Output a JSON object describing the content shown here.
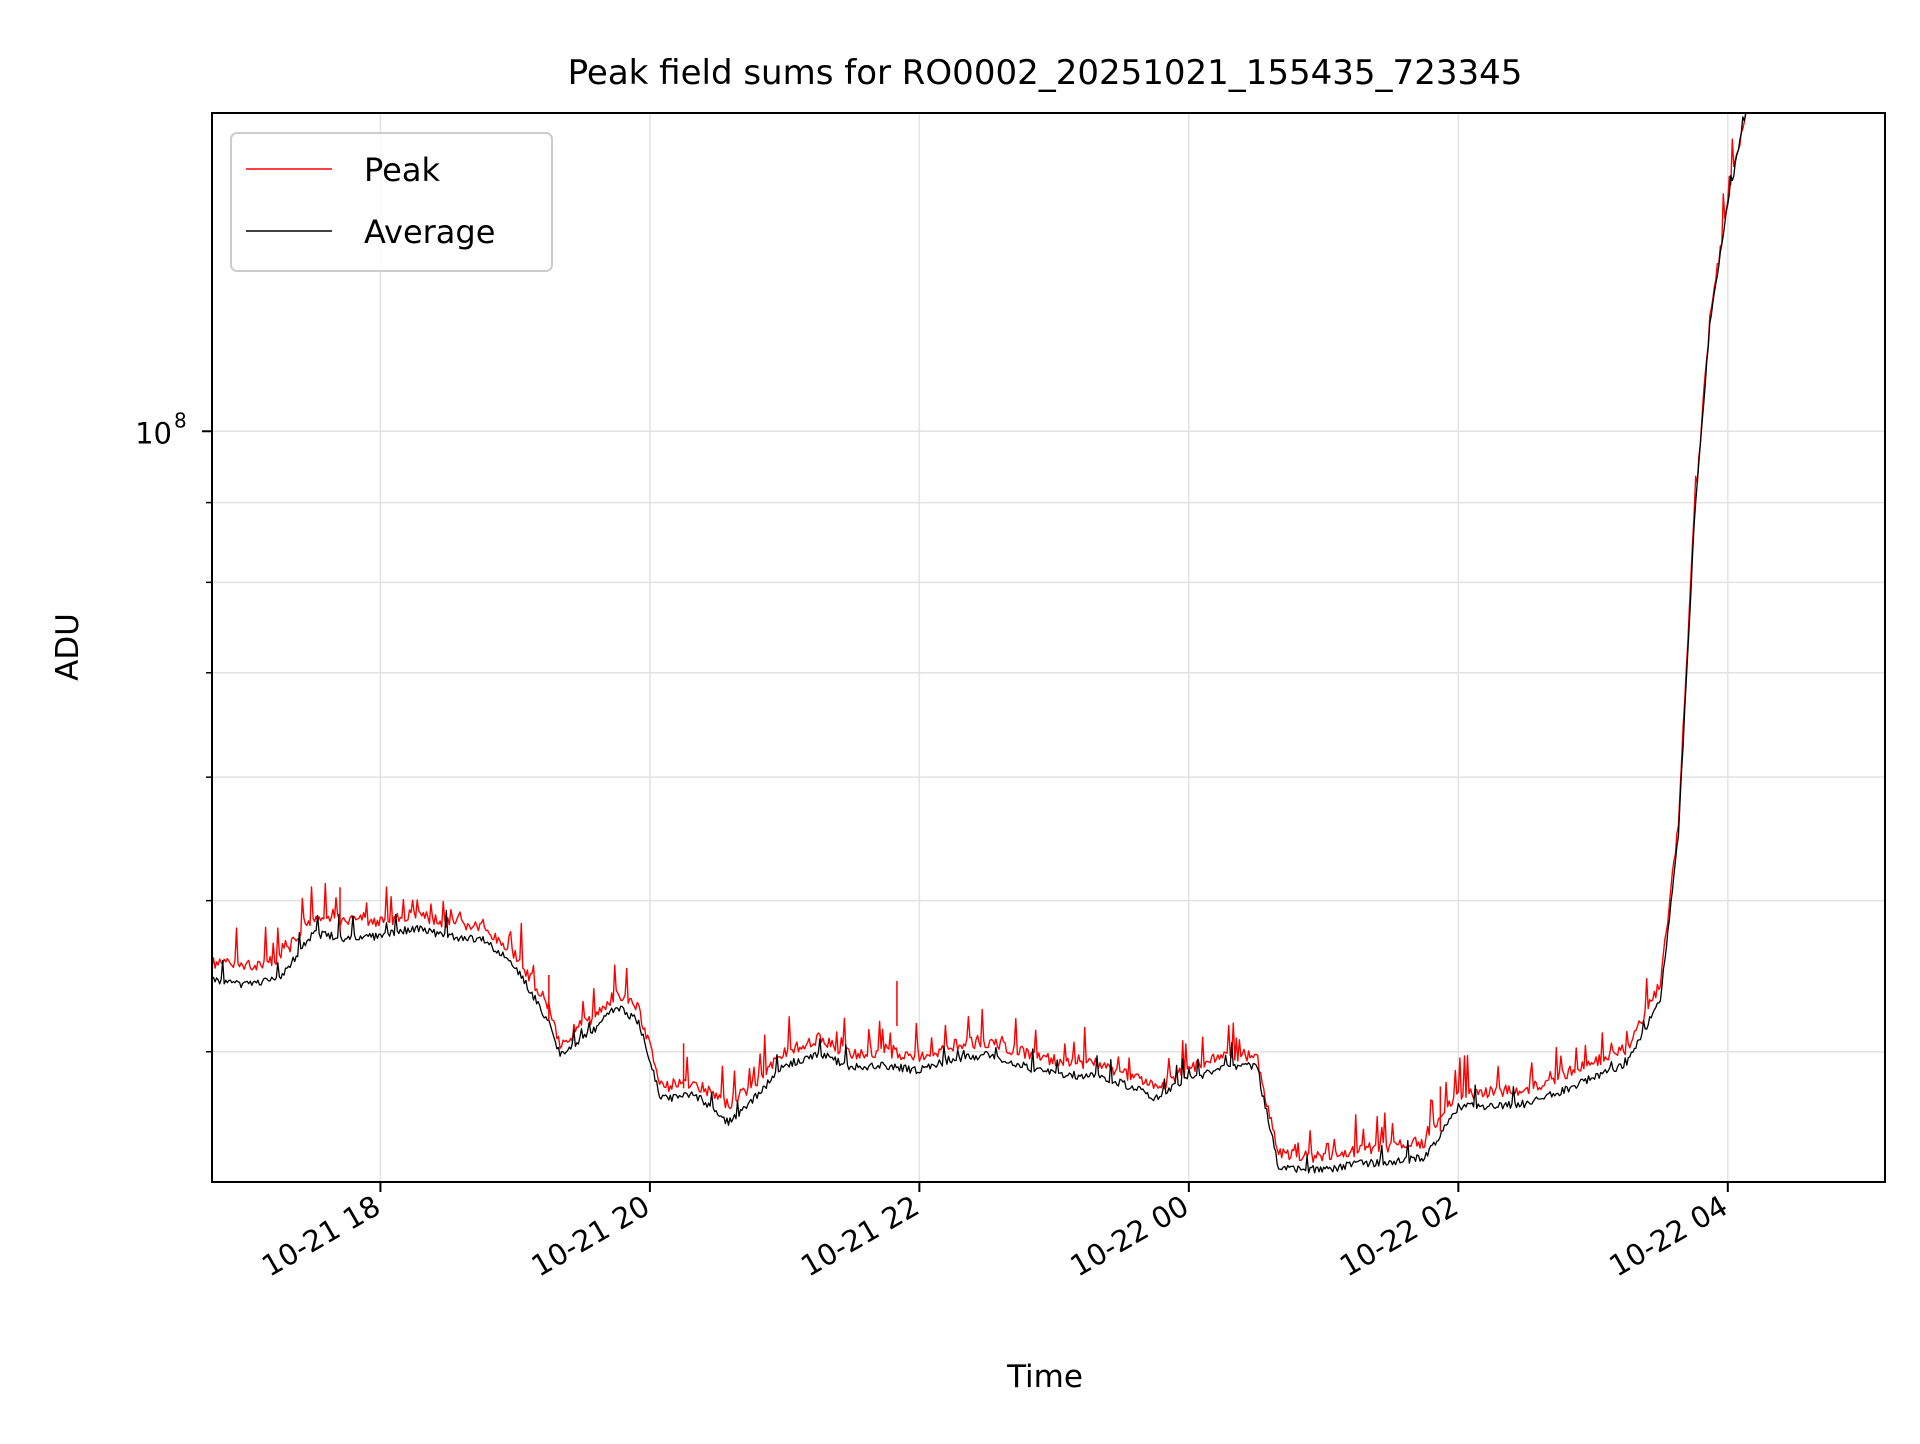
{
  "chart_data": {
    "type": "line",
    "title": "Peak field sums for RO0002_20251021_155435_723345",
    "xlabel": "Time",
    "ylabel": "ADU",
    "x_scale": "time",
    "y_scale": "log",
    "xlim": [
      "2025-10-21 16:45",
      "2025-10-22 05:10"
    ],
    "ylim": [
      33000000,
      160000000
    ],
    "grid": true,
    "legend_position": "top-left",
    "x_ticks": [
      {
        "t": "2025-10-21 18:00",
        "label": "10-21 18"
      },
      {
        "t": "2025-10-21 20:00",
        "label": "10-21 20"
      },
      {
        "t": "2025-10-21 22:00",
        "label": "10-21 22"
      },
      {
        "t": "2025-10-22 00:00",
        "label": "10-22 00"
      },
      {
        "t": "2025-10-22 02:00",
        "label": "10-22 02"
      },
      {
        "t": "2025-10-22 04:00",
        "label": "10-22 04"
      }
    ],
    "y_major_ticks": [
      {
        "value": 100000000,
        "base": "10",
        "exponent": "8"
      }
    ],
    "y_minor_ticks": [
      40000000,
      50000000,
      60000000,
      70000000,
      80000000,
      90000000,
      200000000
    ],
    "series": [
      {
        "name": "Peak",
        "color": "#ff0000",
        "points": [
          [
            "2025-10-21 16:45",
            45600000
          ],
          [
            "2025-10-21 17:00",
            45400000
          ],
          [
            "2025-10-21 17:15",
            45800000
          ],
          [
            "2025-10-21 17:30",
            48800000
          ],
          [
            "2025-10-21 17:45",
            48600000
          ],
          [
            "2025-10-21 18:00",
            48400000
          ],
          [
            "2025-10-21 18:15",
            49000000
          ],
          [
            "2025-10-21 18:30",
            48400000
          ],
          [
            "2025-10-21 18:45",
            48000000
          ],
          [
            "2025-10-21 19:00",
            46200000
          ],
          [
            "2025-10-21 19:15",
            42800000
          ],
          [
            "2025-10-21 19:20",
            40400000
          ],
          [
            "2025-10-21 19:35",
            42000000
          ],
          [
            "2025-10-21 19:45",
            43600000
          ],
          [
            "2025-10-21 19:55",
            42600000
          ],
          [
            "2025-10-21 20:05",
            38000000
          ],
          [
            "2025-10-21 20:20",
            38200000
          ],
          [
            "2025-10-21 20:35",
            37000000
          ],
          [
            "2025-10-21 20:45",
            38000000
          ],
          [
            "2025-10-21 21:00",
            40000000
          ],
          [
            "2025-10-21 21:15",
            40800000
          ],
          [
            "2025-10-21 21:30",
            39800000
          ],
          [
            "2025-10-21 21:45",
            40000000
          ],
          [
            "2025-10-21 22:00",
            39600000
          ],
          [
            "2025-10-21 22:15",
            40400000
          ],
          [
            "2025-10-21 22:30",
            40600000
          ],
          [
            "2025-10-21 22:45",
            40000000
          ],
          [
            "2025-10-21 23:00",
            39500000
          ],
          [
            "2025-10-21 23:15",
            39300000
          ],
          [
            "2025-10-21 23:30",
            38800000
          ],
          [
            "2025-10-21 23:45",
            37900000
          ],
          [
            "2025-10-22 00:00",
            39000000
          ],
          [
            "2025-10-22 00:15",
            39800000
          ],
          [
            "2025-10-22 00:30",
            39800000
          ],
          [
            "2025-10-22 00:40",
            34400000
          ],
          [
            "2025-10-22 01:00",
            34200000
          ],
          [
            "2025-10-22 01:15",
            34600000
          ],
          [
            "2025-10-22 01:30",
            34800000
          ],
          [
            "2025-10-22 01:45",
            35000000
          ],
          [
            "2025-10-22 02:00",
            37600000
          ],
          [
            "2025-10-22 02:15",
            37700000
          ],
          [
            "2025-10-22 02:30",
            37800000
          ],
          [
            "2025-10-22 02:45",
            38600000
          ],
          [
            "2025-10-22 03:00",
            39400000
          ],
          [
            "2025-10-22 03:15",
            40200000
          ],
          [
            "2025-10-22 03:30",
            44200000
          ],
          [
            "2025-10-22 03:38",
            56000000
          ],
          [
            "2025-10-22 03:45",
            88000000
          ],
          [
            "2025-10-22 03:52",
            118000000
          ],
          [
            "2025-10-22 04:00",
            141000000
          ],
          [
            "2025-10-22 04:08",
            160000000
          ]
        ]
      },
      {
        "name": "Average",
        "color": "#000000",
        "points": [
          [
            "2025-10-21 16:45",
            44400000
          ],
          [
            "2025-10-21 17:00",
            44200000
          ],
          [
            "2025-10-21 17:15",
            44600000
          ],
          [
            "2025-10-21 17:30",
            47600000
          ],
          [
            "2025-10-21 17:45",
            47300000
          ],
          [
            "2025-10-21 18:00",
            47400000
          ],
          [
            "2025-10-21 18:15",
            48000000
          ],
          [
            "2025-10-21 18:30",
            47400000
          ],
          [
            "2025-10-21 18:45",
            47300000
          ],
          [
            "2025-10-21 19:00",
            45400000
          ],
          [
            "2025-10-21 19:15",
            41800000
          ],
          [
            "2025-10-21 19:20",
            39800000
          ],
          [
            "2025-10-21 19:35",
            41300000
          ],
          [
            "2025-10-21 19:45",
            42800000
          ],
          [
            "2025-10-21 19:55",
            41800000
          ],
          [
            "2025-10-21 20:05",
            37300000
          ],
          [
            "2025-10-21 20:20",
            37500000
          ],
          [
            "2025-10-21 20:35",
            36000000
          ],
          [
            "2025-10-21 20:45",
            37200000
          ],
          [
            "2025-10-21 21:00",
            39200000
          ],
          [
            "2025-10-21 21:15",
            39900000
          ],
          [
            "2025-10-21 21:30",
            39100000
          ],
          [
            "2025-10-21 21:45",
            39200000
          ],
          [
            "2025-10-21 22:00",
            38900000
          ],
          [
            "2025-10-21 22:15",
            39600000
          ],
          [
            "2025-10-21 22:30",
            39800000
          ],
          [
            "2025-10-21 22:45",
            39200000
          ],
          [
            "2025-10-21 23:00",
            38700000
          ],
          [
            "2025-10-21 23:15",
            38600000
          ],
          [
            "2025-10-21 23:30",
            38200000
          ],
          [
            "2025-10-21 23:45",
            37400000
          ],
          [
            "2025-10-22 00:00",
            38400000
          ],
          [
            "2025-10-22 00:15",
            39100000
          ],
          [
            "2025-10-22 00:30",
            39200000
          ],
          [
            "2025-10-22 00:40",
            33700000
          ],
          [
            "2025-10-22 01:00",
            33600000
          ],
          [
            "2025-10-22 01:15",
            33900000
          ],
          [
            "2025-10-22 01:30",
            34000000
          ],
          [
            "2025-10-22 01:45",
            34200000
          ],
          [
            "2025-10-22 02:00",
            36900000
          ],
          [
            "2025-10-22 02:15",
            36900000
          ],
          [
            "2025-10-22 02:30",
            37000000
          ],
          [
            "2025-10-22 02:45",
            37700000
          ],
          [
            "2025-10-22 03:00",
            38500000
          ],
          [
            "2025-10-22 03:15",
            39300000
          ],
          [
            "2025-10-22 03:30",
            43200000
          ],
          [
            "2025-10-22 03:38",
            55000000
          ],
          [
            "2025-10-22 03:45",
            87000000
          ],
          [
            "2025-10-22 03:52",
            117000000
          ],
          [
            "2025-10-22 04:00",
            140000000
          ],
          [
            "2025-10-22 04:08",
            160000000
          ]
        ]
      }
    ],
    "spikes": [
      {
        "t": "2025-10-21 17:42",
        "value": 51000000
      },
      {
        "t": "2025-10-21 19:15",
        "value": 44800000
      },
      {
        "t": "2025-10-21 20:15",
        "value": 40500000
      },
      {
        "t": "2025-10-21 21:50",
        "value": 44400000
      },
      {
        "t": "2025-10-22 01:52",
        "value": 38000000
      }
    ]
  }
}
